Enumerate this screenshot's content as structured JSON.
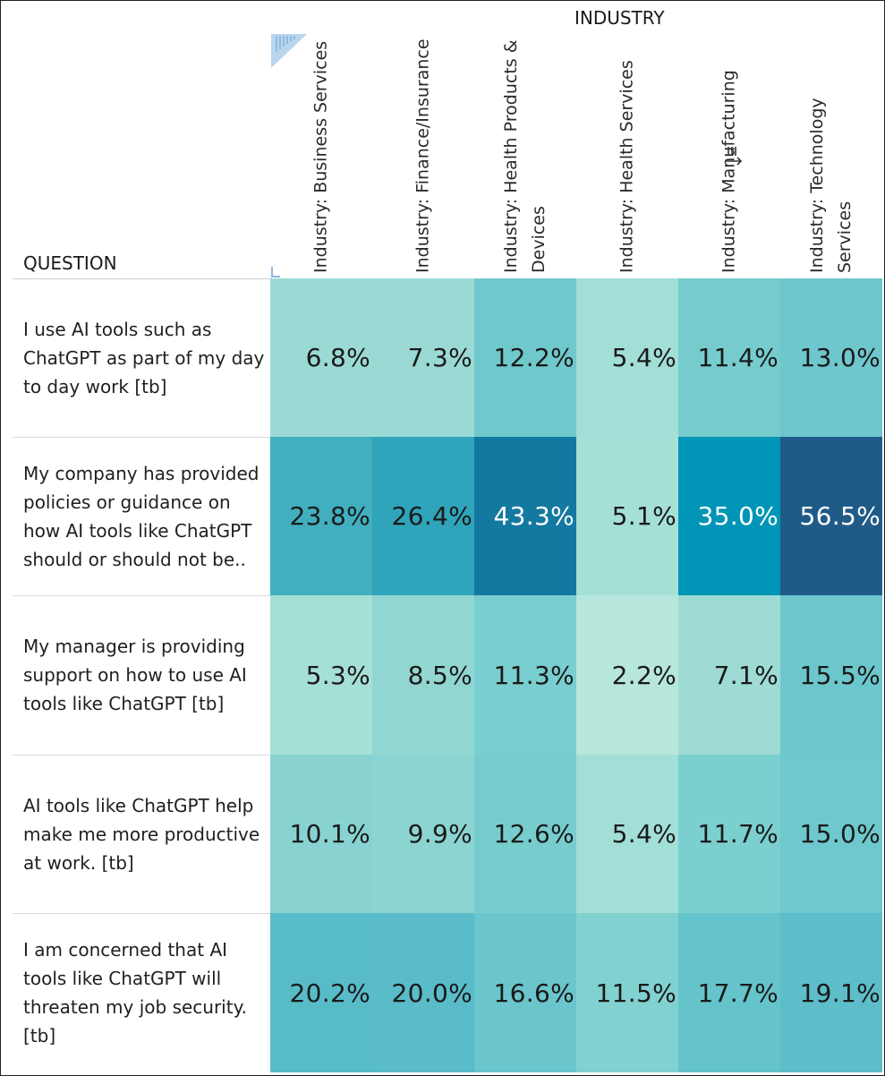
{
  "chart_data": {
    "type": "heatmap",
    "column_header": "INDUSTRY",
    "row_header": "QUESTION",
    "columns": [
      "Industry: Business Services",
      "Industry: Finance/Insurance",
      "Industry: Health Products & Devices",
      "Industry: Health Services",
      "Industry: Manufacturing",
      "Industry: Technology Services"
    ],
    "rows": [
      "I use AI tools such as ChatGPT as part of my day to day work [tb]",
      "My company has provided policies or guidance on how AI tools like ChatGPT should or should not be..",
      "My manager is providing support on how to use AI tools like ChatGPT [tb]",
      "AI tools like ChatGPT help make me more productive at work. [tb]",
      "I am concerned that AI tools like ChatGPT will threaten my job security.  [tb]"
    ],
    "values": [
      [
        6.8,
        7.3,
        12.2,
        5.4,
        11.4,
        13.0
      ],
      [
        23.8,
        26.4,
        43.3,
        5.1,
        35.0,
        56.5
      ],
      [
        5.3,
        8.5,
        11.3,
        2.2,
        7.1,
        15.5
      ],
      [
        10.1,
        9.9,
        12.6,
        5.4,
        11.7,
        15.0
      ],
      [
        20.2,
        20.0,
        16.6,
        11.5,
        17.7,
        19.1
      ]
    ],
    "labels": [
      [
        "6.8%",
        "7.3%",
        "12.2%",
        "5.4%",
        "11.4%",
        "13.0%"
      ],
      [
        "23.8%",
        "26.4%",
        "43.3%",
        "5.1%",
        "35.0%",
        "56.5%"
      ],
      [
        "5.3%",
        "8.5%",
        "11.3%",
        "2.2%",
        "7.1%",
        "15.5%"
      ],
      [
        "10.1%",
        "9.9%",
        "12.6%",
        "5.4%",
        "11.7%",
        "15.0%"
      ],
      [
        "20.2%",
        "20.0%",
        "16.6%",
        "11.5%",
        "17.7%",
        "19.1%"
      ]
    ],
    "cell_colors": [
      [
        "#9bdad4",
        "#9bdad4",
        "#6fc9cc",
        "#a2dfd6",
        "#76cccd",
        "#6ec7cd"
      ],
      [
        "#41afc0",
        "#2fa4bb",
        "#1479a0",
        "#a5e0d7",
        "#0095b7",
        "#205b88"
      ],
      [
        "#a5e0d6",
        "#92d6d2",
        "#79cecf",
        "#b7e7dc",
        "#9edbd4",
        "#6cc7cd"
      ],
      [
        "#88d3d1",
        "#8bd4d1",
        "#77cdce",
        "#a2dfd6",
        "#7ccfcf",
        "#6ec8cd"
      ],
      [
        "#58bcc8",
        "#59bcc8",
        "#6ac5cc",
        "#81d1d0",
        "#65c3cb",
        "#5dbec9"
      ]
    ],
    "light_text_color": "#ffffff",
    "dark_text_color": "#1a1a1a"
  }
}
